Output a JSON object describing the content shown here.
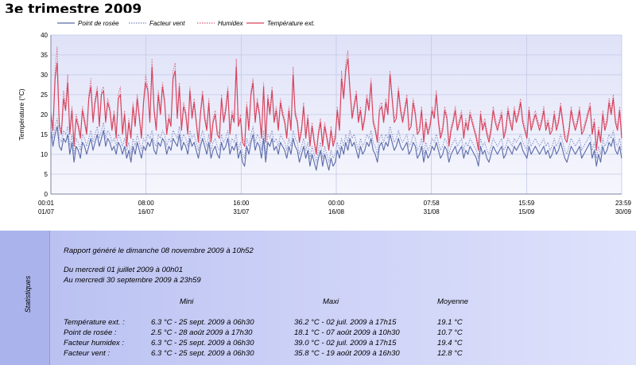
{
  "title": "3e trimestre 2009",
  "chart_data": {
    "type": "line",
    "ylabel": "Température (°C)",
    "xlabel": "",
    "ylim": [
      0,
      40
    ],
    "yticks": [
      0,
      5,
      10,
      15,
      20,
      25,
      30,
      35,
      40
    ],
    "grid": true,
    "legend_position": "top",
    "x_ticks": [
      {
        "time": "00:01",
        "date": "01/07",
        "day": 0
      },
      {
        "time": "08:00",
        "date": "16/07",
        "day": 15.33
      },
      {
        "time": "16:00",
        "date": "31/07",
        "day": 30.67
      },
      {
        "time": "00:00",
        "date": "16/08",
        "day": 46.0
      },
      {
        "time": "07:58",
        "date": "31/08",
        "day": 61.33
      },
      {
        "time": "15:59",
        "date": "15/09",
        "day": 76.67
      },
      {
        "time": "23:59",
        "date": "30/09",
        "day": 92.0
      }
    ],
    "series": [
      {
        "name": "Point de rosée",
        "color": "#5a6aa8",
        "style": "solid",
        "values": [
          16,
          12,
          15,
          17,
          12,
          11,
          14,
          13,
          15,
          10,
          13,
          8,
          12,
          11,
          9,
          13,
          12,
          10,
          12,
          14,
          11,
          13,
          15,
          12,
          14,
          16,
          12,
          14,
          13,
          11,
          12,
          10,
          13,
          12,
          10,
          12,
          9,
          11,
          8,
          12,
          10,
          13,
          11,
          9,
          12,
          11,
          13,
          12,
          14,
          11,
          10,
          13,
          12,
          14,
          13,
          10,
          12,
          11,
          14,
          13,
          12,
          15,
          11,
          13,
          12,
          10,
          14,
          12,
          13,
          11,
          9,
          12,
          14,
          12,
          10,
          13,
          9,
          11,
          12,
          10,
          9,
          13,
          11,
          12,
          14,
          10,
          12,
          11,
          13,
          9,
          11,
          8,
          7,
          12,
          10,
          13,
          15,
          11,
          13,
          12,
          9,
          14,
          8,
          13,
          12,
          14,
          11,
          12,
          10,
          13,
          12,
          11,
          9,
          12,
          10,
          14,
          12,
          11,
          8,
          10,
          12,
          9,
          11,
          7,
          10,
          8,
          6,
          9,
          11,
          7,
          10,
          8,
          6,
          9,
          7,
          8,
          11,
          9,
          12,
          10,
          13,
          11,
          14,
          12,
          13,
          11,
          9,
          12,
          10,
          11,
          13,
          12,
          14,
          11,
          10,
          8,
          12,
          13,
          11,
          13,
          12,
          15,
          13,
          11,
          12,
          14,
          12,
          11,
          12,
          13,
          10,
          11,
          13,
          12,
          9,
          10,
          12,
          8,
          11,
          9,
          10,
          12,
          11,
          13,
          11,
          9,
          10,
          12,
          11,
          8,
          10,
          11,
          12,
          10,
          11,
          12,
          9,
          11,
          10,
          12,
          11,
          10,
          9,
          7,
          12,
          10,
          11,
          9,
          8,
          10,
          12,
          11,
          10,
          11,
          12,
          9,
          10,
          12,
          11,
          10,
          12,
          11,
          12,
          13,
          11,
          10,
          9,
          12,
          10,
          11,
          12,
          11,
          10,
          11,
          12,
          10,
          11,
          9,
          10,
          12,
          10,
          11,
          13,
          11,
          9,
          8,
          10,
          12,
          11,
          10,
          11,
          12,
          9,
          10,
          11,
          12,
          13,
          9,
          11,
          7,
          10,
          8,
          12,
          10,
          11,
          13,
          12,
          14,
          11,
          10,
          12,
          9
        ]
      },
      {
        "name": "Facteur vent",
        "color": "#7a86c0",
        "style": "dotted",
        "values": [
          18,
          14,
          17,
          19,
          14,
          13,
          16,
          15,
          17,
          12,
          15,
          10,
          14,
          13,
          11,
          15,
          14,
          12,
          14,
          16,
          13,
          15,
          17,
          14,
          16,
          18,
          14,
          16,
          15,
          13,
          14,
          12,
          15,
          14,
          12,
          14,
          11,
          13,
          10,
          14,
          12,
          15,
          13,
          11,
          14,
          13,
          15,
          14,
          16,
          13,
          12,
          15,
          14,
          16,
          15,
          12,
          14,
          13,
          16,
          15,
          14,
          17,
          13,
          15,
          14,
          12,
          16,
          14,
          15,
          13,
          11,
          14,
          16,
          14,
          12,
          15,
          11,
          13,
          14,
          12,
          11,
          15,
          13,
          14,
          16,
          12,
          14,
          13,
          15,
          11,
          13,
          10,
          9,
          14,
          12,
          15,
          17,
          13,
          15,
          14,
          11,
          16,
          10,
          15,
          14,
          16,
          13,
          14,
          12,
          15,
          14,
          13,
          11,
          14,
          12,
          16,
          14,
          13,
          10,
          12,
          14,
          11,
          13,
          9,
          12,
          10,
          8,
          11,
          13,
          9,
          12,
          10,
          8,
          11,
          9,
          10,
          13,
          11,
          14,
          12,
          15,
          13,
          16,
          14,
          15,
          13,
          11,
          14,
          12,
          13,
          15,
          14,
          16,
          13,
          12,
          10,
          14,
          15,
          13,
          15,
          14,
          17,
          15,
          13,
          14,
          16,
          14,
          13,
          14,
          15,
          12,
          13,
          15,
          14,
          11,
          12,
          14,
          10,
          13,
          11,
          12,
          14,
          13,
          15,
          13,
          11,
          12,
          14,
          13,
          10,
          12,
          13,
          14,
          12,
          13,
          14,
          11,
          13,
          12,
          14,
          13,
          12,
          11,
          9,
          14,
          12,
          13,
          11,
          10,
          12,
          14,
          13,
          12,
          13,
          14,
          11,
          12,
          14,
          13,
          12,
          14,
          13,
          14,
          15,
          13,
          12,
          11,
          14,
          12,
          13,
          14,
          13,
          12,
          13,
          14,
          12,
          13,
          11,
          12,
          14,
          12,
          13,
          15,
          13,
          11,
          10,
          12,
          14,
          13,
          12,
          13,
          14,
          11,
          12,
          13,
          14,
          15,
          11,
          13,
          9,
          12,
          10,
          14,
          12,
          13,
          15,
          14,
          16,
          13,
          12,
          14,
          11
        ]
      },
      {
        "name": "Humidex",
        "color": "#d8607a",
        "style": "dotted",
        "values": [
          21,
          17,
          31,
          37,
          18,
          16,
          26,
          22,
          30,
          16,
          22,
          13,
          20,
          18,
          15,
          22,
          19,
          16,
          25,
          29,
          19,
          24,
          27,
          18,
          26,
          27,
          19,
          24,
          22,
          17,
          21,
          15,
          25,
          27,
          16,
          21,
          13,
          19,
          15,
          23,
          18,
          25,
          20,
          15,
          24,
          30,
          27,
          19,
          34,
          22,
          17,
          26,
          21,
          28,
          24,
          16,
          20,
          18,
          31,
          33,
          20,
          28,
          17,
          23,
          21,
          16,
          27,
          20,
          24,
          19,
          14,
          21,
          26,
          20,
          17,
          24,
          14,
          19,
          21,
          16,
          15,
          25,
          19,
          22,
          27,
          16,
          21,
          19,
          34,
          18,
          20,
          14,
          13,
          23,
          17,
          26,
          29,
          19,
          24,
          21,
          15,
          28,
          14,
          25,
          21,
          27,
          19,
          22,
          17,
          24,
          21,
          19,
          15,
          22,
          17,
          32,
          21,
          19,
          14,
          17,
          23,
          15,
          20,
          13,
          18,
          14,
          11,
          16,
          19,
          13,
          18,
          15,
          12,
          17,
          13,
          15,
          22,
          17,
          31,
          25,
          33,
          36,
          27,
          20,
          23,
          26,
          19,
          22,
          17,
          20,
          25,
          22,
          29,
          19,
          17,
          14,
          22,
          23,
          19,
          24,
          21,
          31,
          25,
          19,
          20,
          27,
          22,
          19,
          22,
          25,
          17,
          18,
          24,
          21,
          16,
          17,
          22,
          14,
          19,
          16,
          18,
          22,
          20,
          26,
          19,
          15,
          17,
          22,
          20,
          13,
          17,
          19,
          22,
          17,
          19,
          21,
          15,
          19,
          17,
          21,
          19,
          17,
          15,
          12,
          21,
          17,
          19,
          16,
          14,
          17,
          22,
          19,
          17,
          19,
          21,
          15,
          17,
          22,
          19,
          17,
          22,
          19,
          21,
          24,
          19,
          17,
          15,
          22,
          17,
          19,
          21,
          19,
          17,
          19,
          22,
          17,
          19,
          16,
          17,
          21,
          17,
          19,
          23,
          19,
          15,
          14,
          17,
          22,
          19,
          17,
          19,
          22,
          16,
          17,
          19,
          21,
          23,
          16,
          19,
          12,
          17,
          14,
          21,
          17,
          19,
          24,
          21,
          25,
          19,
          17,
          22,
          15
        ]
      },
      {
        "name": "Température ext.",
        "color": "#d8405a",
        "style": "solid",
        "values": [
          20,
          16,
          29,
          33,
          17,
          15,
          24,
          21,
          28,
          15,
          21,
          12,
          19,
          17,
          14,
          21,
          18,
          15,
          24,
          27,
          18,
          23,
          26,
          17,
          25,
          26,
          18,
          23,
          21,
          16,
          20,
          14,
          24,
          25,
          15,
          20,
          12,
          18,
          14,
          22,
          17,
          24,
          19,
          14,
          23,
          28,
          26,
          18,
          32,
          21,
          16,
          25,
          20,
          27,
          23,
          15,
          19,
          17,
          29,
          31,
          19,
          27,
          16,
          22,
          20,
          15,
          26,
          19,
          23,
          18,
          13,
          20,
          25,
          19,
          16,
          23,
          13,
          18,
          20,
          15,
          14,
          24,
          18,
          21,
          26,
          15,
          20,
          18,
          32,
          17,
          19,
          13,
          12,
          22,
          16,
          25,
          28,
          18,
          23,
          20,
          14,
          27,
          13,
          24,
          20,
          26,
          18,
          21,
          16,
          23,
          20,
          18,
          14,
          21,
          16,
          30,
          20,
          18,
          13,
          16,
          22,
          14,
          19,
          12,
          17,
          13,
          10,
          15,
          18,
          12,
          17,
          14,
          11,
          16,
          12,
          14,
          21,
          16,
          29,
          24,
          31,
          34,
          26,
          19,
          22,
          25,
          18,
          21,
          16,
          19,
          24,
          21,
          28,
          18,
          16,
          13,
          21,
          22,
          18,
          23,
          20,
          30,
          24,
          18,
          19,
          26,
          21,
          18,
          21,
          24,
          16,
          17,
          23,
          20,
          15,
          16,
          21,
          13,
          18,
          15,
          17,
          21,
          19,
          25,
          18,
          14,
          16,
          21,
          19,
          12,
          16,
          18,
          21,
          16,
          18,
          20,
          14,
          18,
          16,
          20,
          18,
          16,
          14,
          11,
          20,
          16,
          18,
          15,
          13,
          16,
          21,
          18,
          16,
          18,
          20,
          14,
          16,
          21,
          18,
          16,
          21,
          18,
          20,
          23,
          18,
          16,
          14,
          21,
          16,
          18,
          20,
          18,
          16,
          18,
          21,
          16,
          18,
          15,
          16,
          20,
          16,
          18,
          22,
          18,
          14,
          13,
          16,
          21,
          18,
          16,
          18,
          21,
          15,
          16,
          18,
          20,
          22,
          15,
          18,
          11,
          16,
          13,
          20,
          16,
          18,
          23,
          20,
          24,
          18,
          16,
          21,
          14
        ]
      }
    ]
  },
  "stats": {
    "side_label": "Statistiques",
    "report_line": "Rapport généré le dimanche 08 novembre 2009 à 10h52",
    "from_line": "Du mercredi 01 juillet 2009 à 00h01",
    "to_line": "Au mercredi 30 septembre 2009 à 23h59",
    "col_min": "Mini",
    "col_max": "Maxi",
    "col_avg": "Moyenne",
    "rows": [
      {
        "label": "Température ext. :",
        "min": "6.3 °C - 25 sept. 2009 à 06h30",
        "max": "36.2 °C - 02 juil. 2009 à 17h15",
        "avg": "19.1 °C"
      },
      {
        "label": "Point de rosée :",
        "min": "2.5 °C - 28 août 2009 à 17h30",
        "max": "18.1 °C - 07 août 2009 à 10h30",
        "avg": "10.7 °C"
      },
      {
        "label": "Facteur humidex :",
        "min": "6.3 °C - 25 sept. 2009 à 06h30",
        "max": "39.0 °C - 02 juil. 2009 à 17h15",
        "avg": "19.4 °C"
      },
      {
        "label": "Facteur vent :",
        "min": "6.3 °C - 25 sept. 2009 à 06h30",
        "max": "35.8 °C - 19 août 2009 à 16h30",
        "avg": "12.8 °C"
      }
    ]
  }
}
